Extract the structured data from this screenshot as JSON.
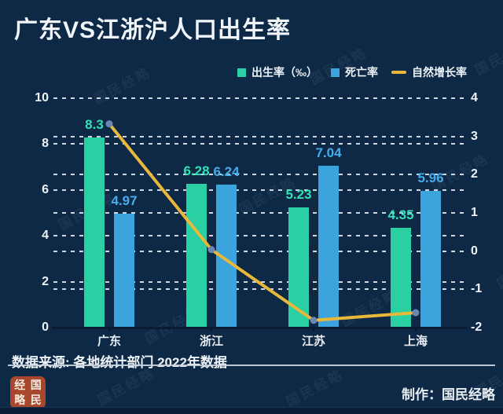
{
  "title": "广东VS江浙沪人口出生率",
  "legend": {
    "items": [
      {
        "label": "出生率（‰）",
        "color": "#2bcfa4",
        "type": "square"
      },
      {
        "label": "死亡率",
        "color": "#3ba4dc",
        "type": "square"
      },
      {
        "label": "自然增长率",
        "color": "#e9b73a",
        "type": "line"
      }
    ]
  },
  "chart_data": {
    "type": "bar+line",
    "categories": [
      "广东",
      "浙江",
      "江苏",
      "上海"
    ],
    "series": [
      {
        "name": "出生率（‰）",
        "type": "bar",
        "axis": "left",
        "color": "#2bcfa4",
        "label_color": "#33e2b4",
        "values": [
          8.3,
          6.28,
          5.23,
          4.35
        ]
      },
      {
        "name": "死亡率",
        "type": "bar",
        "axis": "left",
        "color": "#3ba4dc",
        "label_color": "#46aceb",
        "values": [
          4.97,
          6.24,
          7.04,
          5.96
        ]
      },
      {
        "name": "自然增长率",
        "type": "line",
        "axis": "right",
        "color": "#e9b73a",
        "marker_color": "#6c86b4",
        "values": [
          3.33,
          0.04,
          -1.81,
          -1.61
        ]
      }
    ],
    "left_axis": {
      "ticks": [
        10,
        8,
        6,
        4,
        2,
        0
      ],
      "range": [
        0,
        10
      ]
    },
    "right_axis": {
      "ticks": [
        4,
        3,
        2,
        1,
        0,
        -1,
        -2
      ],
      "range": [
        -2,
        4
      ]
    },
    "grid": "dashed",
    "legend_position": "top-right"
  },
  "source": "数据来源: 各地统计部门 2022年数据",
  "credit": "制作：国民经略",
  "seal_chars": [
    "经",
    "国",
    "略",
    "民"
  ],
  "watermark": "国民经略",
  "colors": {
    "background": "#0e2946",
    "grid": "#dce6f0",
    "text": "#eef3f9",
    "seal": "#a8472c"
  }
}
